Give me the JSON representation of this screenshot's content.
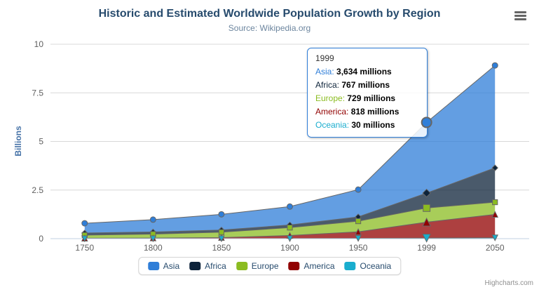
{
  "header": {
    "title": "Historic and Estimated Worldwide Population Growth by Region",
    "subtitle": "Source: Wikipedia.org"
  },
  "chart_data": {
    "type": "area",
    "stacking": "normal",
    "title": "Historic and Estimated Worldwide Population Growth by Region",
    "subtitle": "Source: Wikipedia.org",
    "categories": [
      "1750",
      "1800",
      "1850",
      "1900",
      "1950",
      "1999",
      "2050"
    ],
    "series": [
      {
        "name": "Asia",
        "color": "#2f7ed8",
        "marker": "circle",
        "values": [
          502,
          635,
          809,
          947,
          1402,
          3634,
          5268
        ]
      },
      {
        "name": "Africa",
        "color": "#0d233a",
        "marker": "diamond",
        "values": [
          106,
          107,
          111,
          133,
          221,
          767,
          1766
        ]
      },
      {
        "name": "Europe",
        "color": "#8bbc21",
        "marker": "square",
        "values": [
          163,
          203,
          276,
          408,
          547,
          729,
          628
        ]
      },
      {
        "name": "America",
        "color": "#910000",
        "marker": "triangle",
        "values": [
          18,
          31,
          54,
          156,
          339,
          818,
          1201
        ]
      },
      {
        "name": "Oceania",
        "color": "#1aadce",
        "marker": "triangle-down",
        "values": [
          2,
          2,
          2,
          6,
          13,
          30,
          46
        ]
      }
    ],
    "values_unit": "millions",
    "xlabel": "",
    "ylabel": "Billions",
    "yticks": [
      "0",
      "2.5",
      "5",
      "7.5",
      "10"
    ],
    "ylim": [
      0,
      10
    ],
    "grid": true,
    "legend_position": "bottom",
    "line_color": "#666666",
    "fill_opacity": 0.75
  },
  "tooltip": {
    "category": "1999",
    "category_index": 5,
    "border_color": "#2f7ed8",
    "rows": [
      {
        "name": "Asia",
        "value": "3,634",
        "unit": "millions",
        "color": "#2f7ed8"
      },
      {
        "name": "Africa",
        "value": "767",
        "unit": "millions",
        "color": "#0d233a"
      },
      {
        "name": "Europe",
        "value": "729",
        "unit": "millions",
        "color": "#8bbc21"
      },
      {
        "name": "America",
        "value": "818",
        "unit": "millions",
        "color": "#910000"
      },
      {
        "name": "Oceania",
        "value": "30",
        "unit": "millions",
        "color": "#1aadce"
      }
    ]
  },
  "credits": {
    "text": "Highcharts.com"
  }
}
